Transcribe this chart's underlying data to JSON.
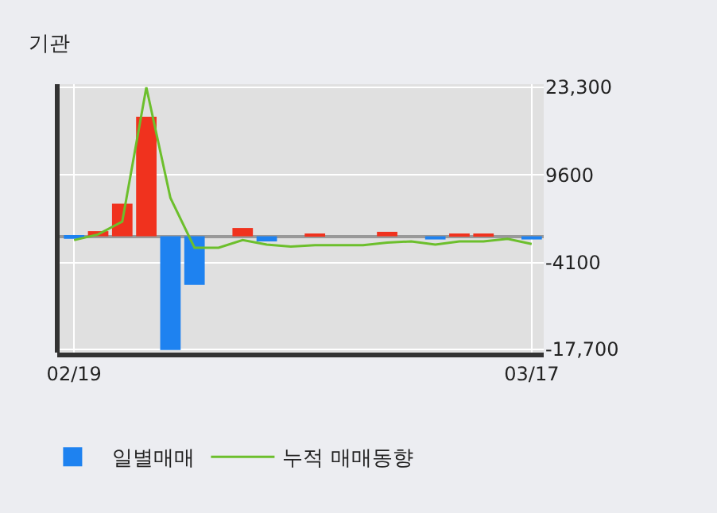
{
  "chart_data": {
    "type": "bar",
    "title": "기관",
    "categories": [
      "02/19",
      null,
      null,
      null,
      null,
      null,
      null,
      null,
      null,
      null,
      null,
      null,
      null,
      null,
      null,
      null,
      null,
      null,
      null,
      "03/17"
    ],
    "series": [
      {
        "name": "일별매매",
        "colors": [
          "#1e82f0",
          "#f0321e",
          "#f0321e",
          "#f0321e",
          "#1e82f0",
          "#1e82f0",
          "#f0321e",
          "#f0321e",
          "#1e82f0",
          "#f0321e",
          "#f0321e",
          "#f0321e",
          "#f0321e",
          "#f0321e",
          "#f0321e",
          "#1e82f0",
          "#f0321e",
          "#f0321e",
          "#f0321e",
          "#1e82f0"
        ],
        "values": [
          -400,
          800,
          5100,
          18700,
          -17800,
          -7600,
          0,
          1300,
          -800,
          0,
          300,
          0,
          0,
          700,
          0,
          -500,
          400,
          400,
          0,
          -500
        ]
      },
      {
        "name": "누적 매매동향",
        "type": "line",
        "color": "#6cbf2c",
        "values": [
          -600,
          300,
          2300,
          23300,
          6000,
          -1800,
          -1800,
          -600,
          -1300,
          -1600,
          -1400,
          -1400,
          -1400,
          -1000,
          -800,
          -1300,
          -800,
          -800,
          -400,
          -1200
        ]
      }
    ],
    "ylim": [
      -18200,
      23800
    ],
    "yticks": [
      {
        "value": 23300,
        "label": "23,300"
      },
      9600,
      -4100,
      {
        "value": -17700,
        "label": "-17,700"
      }
    ],
    "grid": true,
    "legend": "bottom",
    "marker": "none"
  }
}
